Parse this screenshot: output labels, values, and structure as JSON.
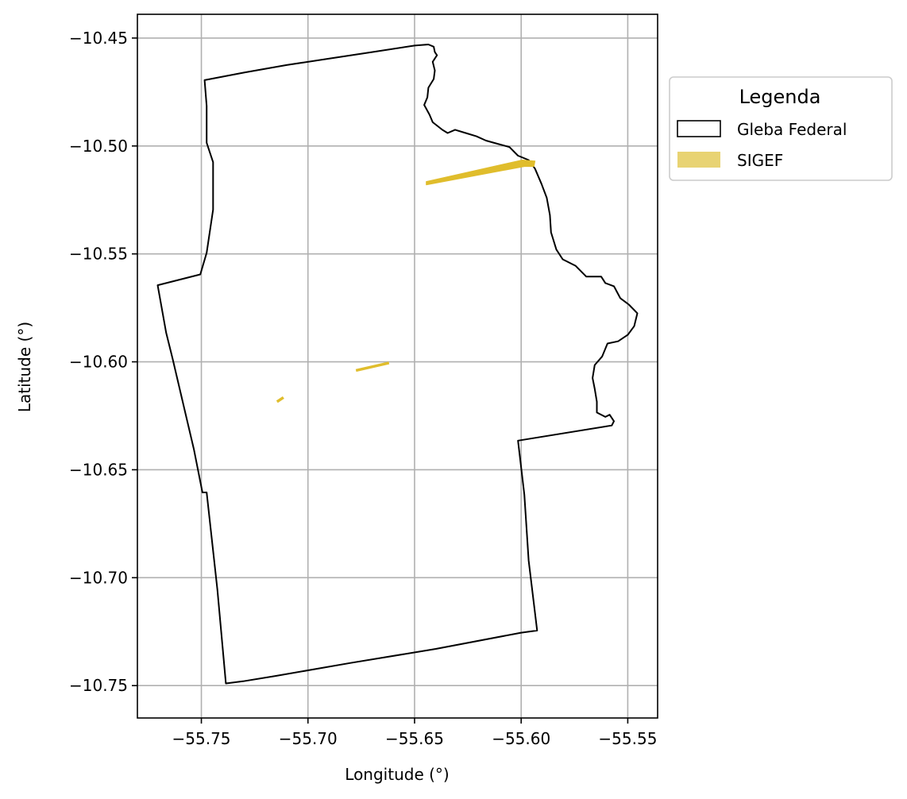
{
  "chart_data": {
    "type": "map",
    "xlabel": "Longitude (°)",
    "ylabel": "Latitude (°)",
    "xlim": [
      -55.78,
      -55.536
    ],
    "ylim": [
      -10.765,
      -10.439
    ],
    "xticks": [
      -55.75,
      -55.7,
      -55.65,
      -55.6,
      -55.55
    ],
    "yticks": [
      -10.45,
      -10.5,
      -10.55,
      -10.6,
      -10.65,
      -10.7,
      -10.75
    ],
    "xtick_labels": [
      "−55.75",
      "−55.70",
      "−55.65",
      "−55.60",
      "−55.55"
    ],
    "ytick_labels": [
      "−10.45",
      "−10.50",
      "−10.55",
      "−10.60",
      "−10.65",
      "−10.70",
      "−10.75"
    ],
    "grid": true,
    "legend": {
      "title": "Legenda",
      "placement": "outside-right-top",
      "entries": [
        {
          "label": "Gleba Federal",
          "style": "outline",
          "color": "#000000"
        },
        {
          "label": "SIGEF",
          "style": "fill",
          "color": "#e8d373"
        }
      ]
    },
    "layers": [
      {
        "name": "Gleba Federal",
        "type": "polygon",
        "stroke": "#000000",
        "fill": "none",
        "coordinates": [
          [
            -55.7485,
            -10.4695
          ],
          [
            -55.73,
            -10.466
          ],
          [
            -55.71,
            -10.4625
          ],
          [
            -55.69,
            -10.4595
          ],
          [
            -55.67,
            -10.4565
          ],
          [
            -55.65,
            -10.4535
          ],
          [
            -55.6435,
            -10.453
          ],
          [
            -55.641,
            -10.454
          ],
          [
            -55.6405,
            -10.4565
          ],
          [
            -55.6395,
            -10.458
          ],
          [
            -55.6415,
            -10.461
          ],
          [
            -55.6405,
            -10.465
          ],
          [
            -55.641,
            -10.469
          ],
          [
            -55.6435,
            -10.473
          ],
          [
            -55.644,
            -10.4775
          ],
          [
            -55.6455,
            -10.481
          ],
          [
            -55.643,
            -10.4855
          ],
          [
            -55.6415,
            -10.489
          ],
          [
            -55.637,
            -10.4925
          ],
          [
            -55.6345,
            -10.494
          ],
          [
            -55.631,
            -10.4925
          ],
          [
            -55.626,
            -10.494
          ],
          [
            -55.621,
            -10.4955
          ],
          [
            -55.6165,
            -10.4975
          ],
          [
            -55.611,
            -10.499
          ],
          [
            -55.6055,
            -10.5005
          ],
          [
            -55.6015,
            -10.5045
          ],
          [
            -55.5965,
            -10.5065
          ],
          [
            -55.5935,
            -10.5105
          ],
          [
            -55.5905,
            -10.5175
          ],
          [
            -55.588,
            -10.524
          ],
          [
            -55.5865,
            -10.532
          ],
          [
            -55.586,
            -10.54
          ],
          [
            -55.5835,
            -10.548
          ],
          [
            -55.5805,
            -10.5525
          ],
          [
            -55.5745,
            -10.5555
          ],
          [
            -55.5695,
            -10.5605
          ],
          [
            -55.5625,
            -10.5605
          ],
          [
            -55.5605,
            -10.5635
          ],
          [
            -55.5565,
            -10.565
          ],
          [
            -55.5535,
            -10.5705
          ],
          [
            -55.5495,
            -10.5735
          ],
          [
            -55.5455,
            -10.5775
          ],
          [
            -55.547,
            -10.5835
          ],
          [
            -55.55,
            -10.5875
          ],
          [
            -55.5545,
            -10.5905
          ],
          [
            -55.5595,
            -10.5915
          ],
          [
            -55.562,
            -10.5975
          ],
          [
            -55.5655,
            -10.6015
          ],
          [
            -55.5665,
            -10.6075
          ],
          [
            -55.5655,
            -10.6125
          ],
          [
            -55.5645,
            -10.6185
          ],
          [
            -55.5645,
            -10.6235
          ],
          [
            -55.5605,
            -10.6255
          ],
          [
            -55.5585,
            -10.6245
          ],
          [
            -55.5565,
            -10.6275
          ],
          [
            -55.5575,
            -10.6295
          ],
          [
            -55.6015,
            -10.6365
          ],
          [
            -55.5985,
            -10.6615
          ],
          [
            -55.5965,
            -10.692
          ],
          [
            -55.5925,
            -10.7245
          ],
          [
            -55.6,
            -10.7255
          ],
          [
            -55.64,
            -10.733
          ],
          [
            -55.68,
            -10.7395
          ],
          [
            -55.715,
            -10.7455
          ],
          [
            -55.7305,
            -10.748
          ],
          [
            -55.7385,
            -10.749
          ],
          [
            -55.7425,
            -10.7055
          ],
          [
            -55.7455,
            -10.6785
          ],
          [
            -55.7475,
            -10.6605
          ],
          [
            -55.7495,
            -10.6605
          ],
          [
            -55.7535,
            -10.6405
          ],
          [
            -55.7585,
            -10.6195
          ],
          [
            -55.7635,
            -10.5985
          ],
          [
            -55.7665,
            -10.5865
          ],
          [
            -55.7705,
            -10.5645
          ],
          [
            -55.7505,
            -10.5595
          ],
          [
            -55.7475,
            -10.5495
          ],
          [
            -55.7445,
            -10.5295
          ],
          [
            -55.7445,
            -10.5075
          ],
          [
            -55.7465,
            -10.5015
          ],
          [
            -55.7475,
            -10.4985
          ],
          [
            -55.7475,
            -10.4815
          ],
          [
            -55.7485,
            -10.4695
          ]
        ]
      },
      {
        "name": "SIGEF",
        "type": "polygon",
        "fill": "#e0bd2c",
        "stroke": "#e0bd2c",
        "coordinates": [
          [
            -55.6445,
            -10.5165
          ],
          [
            -55.5995,
            -10.5065
          ],
          [
            -55.5935,
            -10.507
          ],
          [
            -55.594,
            -10.5095
          ],
          [
            -55.5985,
            -10.5095
          ],
          [
            -55.6445,
            -10.518
          ]
        ]
      },
      {
        "name": "SIGEF",
        "type": "line",
        "stroke": "#e0bd2c",
        "coordinates": [
          [
            -55.6775,
            -10.604
          ],
          [
            -55.662,
            -10.6005
          ]
        ]
      },
      {
        "name": "SIGEF",
        "type": "line",
        "stroke": "#e0bd2c",
        "coordinates": [
          [
            -55.7145,
            -10.6185
          ],
          [
            -55.7115,
            -10.6165
          ]
        ]
      }
    ]
  }
}
